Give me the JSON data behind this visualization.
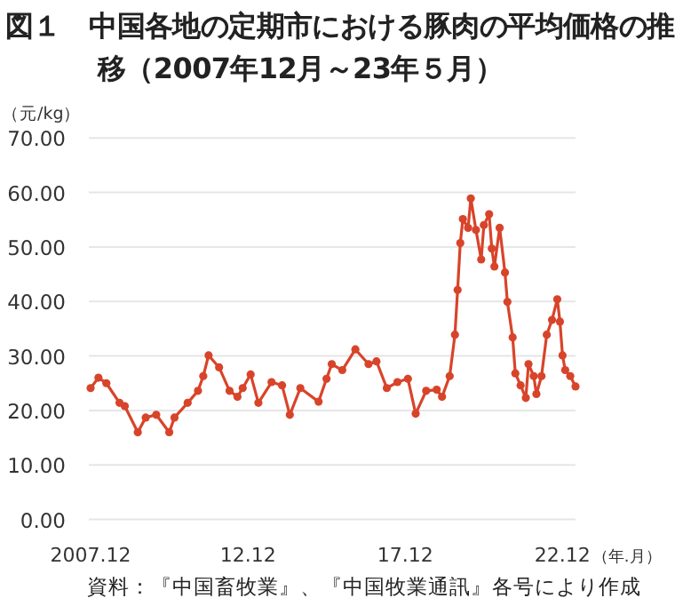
{
  "chart_data": {
    "type": "line",
    "title": "図１　中国各地の定期市における豚肉の平均価格の推移（2007年12月～23年５月）",
    "ylabel": "（元/kg）",
    "xlabel": "（年.月）",
    "annotations": [
      "資料：『中国畜牧業』、『中国牧業通訊』各号により作成"
    ],
    "x": [
      "2007-12",
      "2008-03",
      "2008-06",
      "2008-11",
      "2009-01",
      "2009-06",
      "2009-09",
      "2010-01",
      "2010-06",
      "2010-08",
      "2011-01",
      "2011-05",
      "2011-07",
      "2011-09",
      "2012-01",
      "2012-05",
      "2012-08",
      "2012-10",
      "2013-01",
      "2013-04",
      "2013-09",
      "2014-01",
      "2014-04",
      "2014-08",
      "2015-03",
      "2015-06",
      "2015-08",
      "2015-12",
      "2016-05",
      "2016-10",
      "2017-01",
      "2017-05",
      "2017-09",
      "2018-01",
      "2018-04",
      "2018-08",
      "2018-12",
      "2019-02",
      "2019-05",
      "2019-07",
      "2019-08",
      "2019-09",
      "2019-10",
      "2019-12",
      "2020-01",
      "2020-03",
      "2020-05",
      "2020-06",
      "2020-08",
      "2020-09",
      "2020-10",
      "2020-12",
      "2021-02",
      "2021-03",
      "2021-05",
      "2021-06",
      "2021-08",
      "2021-10",
      "2021-11",
      "2022-01",
      "2022-02",
      "2022-04",
      "2022-06",
      "2022-08",
      "2022-10",
      "2022-11",
      "2022-12",
      "2023-01",
      "2023-03",
      "2023-05"
    ],
    "series": [
      {
        "color": "#d8442a",
        "values": [
          24.1,
          26.0,
          25.0,
          21.4,
          20.8,
          16.0,
          18.7,
          19.2,
          16.0,
          18.7,
          21.4,
          23.6,
          26.3,
          30.1,
          27.9,
          23.6,
          22.5,
          24.1,
          26.6,
          21.4,
          25.2,
          24.6,
          19.2,
          24.1,
          21.6,
          25.8,
          28.5,
          27.4,
          31.2,
          28.5,
          29.0,
          24.1,
          25.2,
          25.8,
          19.4,
          23.6,
          23.8,
          22.5,
          26.3,
          33.9,
          42.1,
          50.7,
          55.1,
          53.5,
          58.9,
          53.1,
          47.7,
          54.0,
          56.0,
          49.7,
          46.4,
          53.5,
          45.3,
          39.9,
          33.4,
          26.8,
          24.6,
          22.3,
          28.5,
          26.3,
          23.0,
          26.3,
          33.9,
          36.6,
          40.4,
          36.3,
          30.1,
          27.4,
          26.3,
          24.4
        ]
      }
    ],
    "xlim": [
      "2007-12",
      "2023-05"
    ],
    "xticks": [
      {
        "value": "2007-12",
        "label": "2007.12"
      },
      {
        "value": "2012-12",
        "label": "12.12"
      },
      {
        "value": "2017-12",
        "label": "17.12"
      },
      {
        "value": "2022-12",
        "label": "22.12"
      }
    ],
    "ylim": [
      0,
      70
    ],
    "yticks": [
      {
        "value": 0,
        "label": "0.00"
      },
      {
        "value": 10,
        "label": "10.00"
      },
      {
        "value": 20,
        "label": "20.00"
      },
      {
        "value": 30,
        "label": "30.00"
      },
      {
        "value": 40,
        "label": "40.00"
      },
      {
        "value": 50,
        "label": "50.00"
      },
      {
        "value": 60,
        "label": "60.00"
      },
      {
        "value": 70,
        "label": "70.00"
      }
    ],
    "grid": "y",
    "marker": "circle",
    "line_style": "solid"
  }
}
